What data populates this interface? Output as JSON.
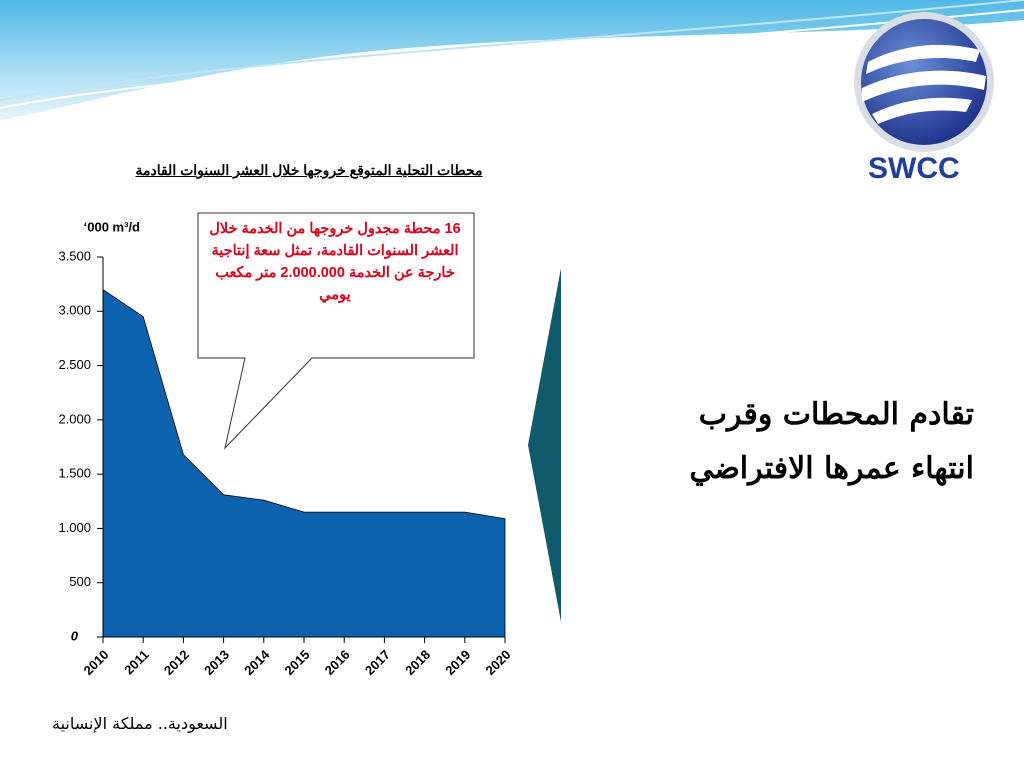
{
  "logo": "SWCC",
  "heading": [
    "تقادم المحطات وقرب",
    "انتهاء عمرها الافتراضي"
  ],
  "footer": "السعودية.. مملكة الإنسانية",
  "chart_data": {
    "type": "area",
    "title": "محطات التحلية المتوقع خروجها خلال العشر السنوات القادمة",
    "y_label": "‘000 m³/d",
    "annotation": "16 محطة مجدول خروجها من الخدمة خلال العشر السنوات القادمة، تمثل سعة إنتاجية خارجة عن الخدمة 2.000.000 متر مكعب يومي",
    "categories": [
      "2010",
      "2011",
      "2012",
      "2013",
      "2014",
      "2015",
      "2016",
      "2017",
      "2018",
      "2019",
      "2020"
    ],
    "values": [
      3200,
      2950,
      1680,
      1310,
      1260,
      1150,
      1150,
      1150,
      1150,
      1150,
      1090
    ],
    "color": "#0d62ad",
    "ylim": [
      0,
      3500
    ],
    "yticks": [
      0,
      500,
      {
        "value": 1000,
        "label": "1.000"
      },
      {
        "value": 1500,
        "label": "1.500"
      },
      {
        "value": 2000,
        "label": "2.000"
      },
      {
        "value": 2500,
        "label": "2.500"
      },
      {
        "value": 3000,
        "label": "3.000"
      },
      {
        "value": 3500,
        "label": "3.500"
      }
    ]
  }
}
